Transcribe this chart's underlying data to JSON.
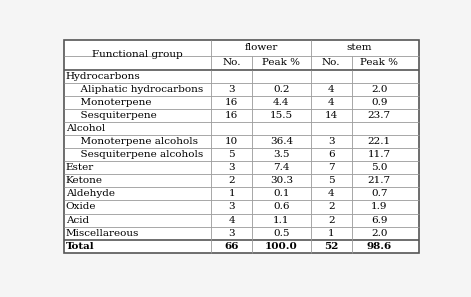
{
  "rows": [
    {
      "label": "Functional group",
      "indent": false,
      "is_header": true,
      "is_subheader": false,
      "is_total": false,
      "flower_no": "",
      "flower_pct": "",
      "stem_no": "",
      "stem_pct": ""
    },
    {
      "label": "Hydrocarbons",
      "indent": false,
      "is_header": false,
      "is_subheader": true,
      "is_total": false,
      "flower_no": "",
      "flower_pct": "",
      "stem_no": "",
      "stem_pct": ""
    },
    {
      "label": "  Aliphatic hydrocarbons",
      "indent": true,
      "is_header": false,
      "is_subheader": false,
      "is_total": false,
      "flower_no": "3",
      "flower_pct": "0.2",
      "stem_no": "4",
      "stem_pct": "2.0"
    },
    {
      "label": "  Monoterpene",
      "indent": true,
      "is_header": false,
      "is_subheader": false,
      "is_total": false,
      "flower_no": "16",
      "flower_pct": "4.4",
      "stem_no": "4",
      "stem_pct": "0.9"
    },
    {
      "label": "  Sesquiterpene",
      "indent": true,
      "is_header": false,
      "is_subheader": false,
      "is_total": false,
      "flower_no": "16",
      "flower_pct": "15.5",
      "stem_no": "14",
      "stem_pct": "23.7"
    },
    {
      "label": "Alcohol",
      "indent": false,
      "is_header": false,
      "is_subheader": true,
      "is_total": false,
      "flower_no": "",
      "flower_pct": "",
      "stem_no": "",
      "stem_pct": ""
    },
    {
      "label": "  Monoterpene alcohols",
      "indent": true,
      "is_header": false,
      "is_subheader": false,
      "is_total": false,
      "flower_no": "10",
      "flower_pct": "36.4",
      "stem_no": "3",
      "stem_pct": "22.1"
    },
    {
      "label": "  Sesquiterpene alcohols",
      "indent": true,
      "is_header": false,
      "is_subheader": false,
      "is_total": false,
      "flower_no": "5",
      "flower_pct": "3.5",
      "stem_no": "6",
      "stem_pct": "11.7"
    },
    {
      "label": "Ester",
      "indent": false,
      "is_header": false,
      "is_subheader": false,
      "is_total": false,
      "flower_no": "3",
      "flower_pct": "7.4",
      "stem_no": "7",
      "stem_pct": "5.0"
    },
    {
      "label": "Ketone",
      "indent": false,
      "is_header": false,
      "is_subheader": false,
      "is_total": false,
      "flower_no": "2",
      "flower_pct": "30.3",
      "stem_no": "5",
      "stem_pct": "21.7"
    },
    {
      "label": "Aldehyde",
      "indent": false,
      "is_header": false,
      "is_subheader": false,
      "is_total": false,
      "flower_no": "1",
      "flower_pct": "0.1",
      "stem_no": "4",
      "stem_pct": "0.7"
    },
    {
      "label": "Oxide",
      "indent": false,
      "is_header": false,
      "is_subheader": false,
      "is_total": false,
      "flower_no": "3",
      "flower_pct": "0.6",
      "stem_no": "2",
      "stem_pct": "1.9"
    },
    {
      "label": "Acid",
      "indent": false,
      "is_header": false,
      "is_subheader": false,
      "is_total": false,
      "flower_no": "4",
      "flower_pct": "1.1",
      "stem_no": "2",
      "stem_pct": "6.9"
    },
    {
      "label": "Miscellareous",
      "indent": false,
      "is_header": false,
      "is_subheader": false,
      "is_total": false,
      "flower_no": "3",
      "flower_pct": "0.5",
      "stem_no": "1",
      "stem_pct": "2.0"
    },
    {
      "label": "Total",
      "indent": false,
      "is_header": false,
      "is_subheader": false,
      "is_total": true,
      "flower_no": "66",
      "flower_pct": "100.0",
      "stem_no": "52",
      "stem_pct": "98.6"
    }
  ],
  "bg_color": "#f5f5f5",
  "border_color": "#999999",
  "text_color": "#000000",
  "font_size": 7.5,
  "font_family": "serif"
}
